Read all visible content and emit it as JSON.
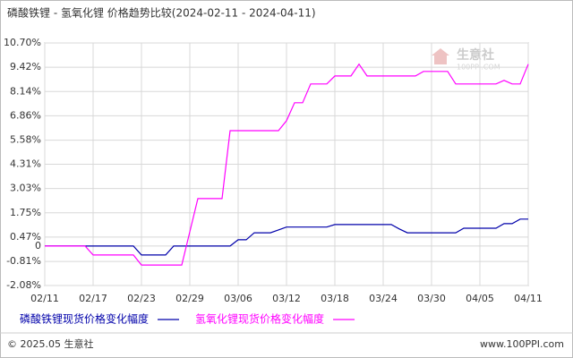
{
  "chart_data": {
    "type": "line",
    "title": "磷酸铁锂 - 氢氧化锂 价格趋势比较(2024-02-11 - 2024-04-11)",
    "categories": [
      "02/11",
      null,
      null,
      null,
      null,
      null,
      "02/17",
      null,
      null,
      null,
      null,
      null,
      "02/23",
      null,
      null,
      null,
      null,
      null,
      "02/29",
      null,
      null,
      null,
      null,
      null,
      "03/06",
      null,
      null,
      null,
      null,
      null,
      "03/12",
      null,
      null,
      null,
      null,
      null,
      "03/18",
      null,
      null,
      null,
      null,
      null,
      "03/24",
      null,
      null,
      null,
      null,
      null,
      "03/30",
      null,
      null,
      null,
      null,
      null,
      "04/05",
      null,
      null,
      null,
      null,
      null,
      "04/11"
    ],
    "series": [
      {
        "name": "磷酸铁锂现货价格变化幅度",
        "color": "#0000aa",
        "values": [
          0,
          0,
          0,
          0,
          0,
          0,
          0,
          0,
          0,
          0,
          0,
          0,
          -0.47,
          -0.47,
          -0.47,
          -0.47,
          0,
          0,
          0,
          0,
          0,
          0,
          0,
          0,
          0.33,
          0.33,
          0.7,
          0.7,
          0.7,
          0.85,
          1.0,
          1.0,
          1.0,
          1.0,
          1.0,
          1.0,
          1.13,
          1.13,
          1.13,
          1.13,
          1.13,
          1.13,
          1.13,
          1.13,
          0.9,
          0.7,
          0.7,
          0.7,
          0.7,
          0.7,
          0.7,
          0.7,
          0.94,
          0.94,
          0.94,
          0.94,
          0.94,
          1.18,
          1.18,
          1.42,
          1.42
        ]
      },
      {
        "name": "氢氧化锂现货价格变化幅度",
        "color": "#ff00ff",
        "values": [
          0,
          0,
          0,
          0,
          0,
          0,
          -0.47,
          -0.47,
          -0.47,
          -0.47,
          -0.47,
          -0.47,
          -1.0,
          -1.0,
          -1.0,
          -1.0,
          -1.0,
          -1.0,
          0.75,
          2.5,
          2.5,
          2.5,
          2.5,
          6.08,
          6.08,
          6.08,
          6.08,
          6.08,
          6.08,
          6.08,
          6.6,
          7.55,
          7.55,
          8.54,
          8.54,
          8.54,
          8.96,
          8.96,
          8.96,
          9.58,
          8.96,
          8.96,
          8.96,
          8.96,
          8.96,
          8.96,
          8.96,
          9.2,
          9.2,
          9.2,
          9.2,
          8.54,
          8.54,
          8.54,
          8.54,
          8.54,
          8.54,
          8.73,
          8.54,
          8.54,
          9.58
        ]
      }
    ],
    "ylim": [
      -2.08,
      10.7
    ],
    "yticks": [
      {
        "value": -2.08,
        "label": "-2.08%"
      },
      {
        "value": -0.81,
        "label": "-0.81%"
      },
      0,
      {
        "value": 0.47,
        "label": "0.47%"
      },
      {
        "value": 1.75,
        "label": "1.75%"
      },
      {
        "value": 3.03,
        "label": "3.03%"
      },
      {
        "value": 4.31,
        "label": "4.31%"
      },
      {
        "value": 5.58,
        "label": "5.58%"
      },
      {
        "value": 6.86,
        "label": "6.86%"
      },
      {
        "value": 8.14,
        "label": "8.14%"
      },
      {
        "value": 9.42,
        "label": "9.42%"
      },
      {
        "value": 10.7,
        "label": "10.70%"
      }
    ],
    "grid": true
  },
  "watermark": {
    "name": "生意社",
    "site": "100PPI.COM"
  },
  "footer": {
    "copyright": "© 2025.05 生意社",
    "site": "www.100PPI.com"
  }
}
